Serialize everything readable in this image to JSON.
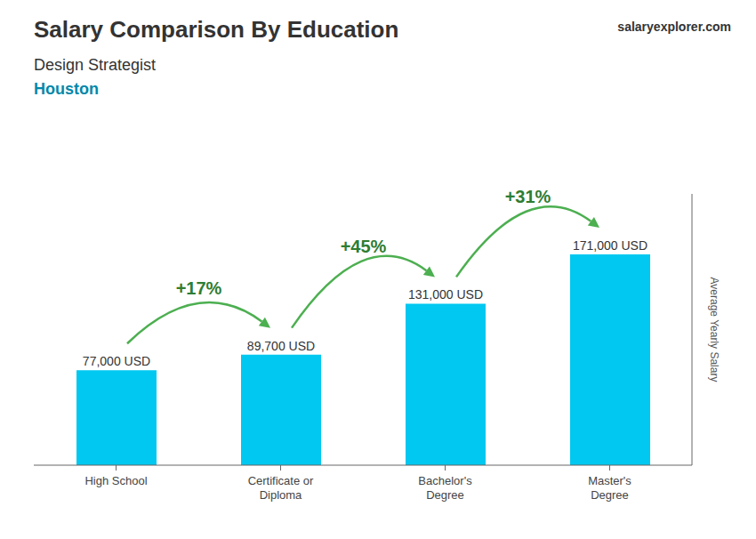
{
  "chart_data": {
    "type": "bar",
    "title": "Salary Comparison By Education",
    "subtitle": [
      "Design Strategist",
      "Houston"
    ],
    "ylabel": "Average Yearly Salary",
    "categories": [
      "High School",
      "Certificate or\nDiploma",
      "Bachelor's\nDegree",
      "Master's\nDegree"
    ],
    "values": [
      77000,
      89700,
      131000,
      171000
    ],
    "value_labels": [
      "77,000 USD",
      "89,700 USD",
      "131,000 USD",
      "171,000 USD"
    ],
    "color": "#00c8f0",
    "ylim": [
      0,
      220000
    ],
    "tick_labels": false,
    "grid": false,
    "annotations": [
      {
        "text": "salaryexplorer.com"
      },
      {
        "text": "+17%",
        "from": "High School",
        "to": "Certificate or\nDiploma"
      },
      {
        "text": "+45%",
        "from": "Certificate or\nDiploma",
        "to": "Bachelor's\nDegree"
      },
      {
        "text": "+31%",
        "from": "Bachelor's\nDegree",
        "to": "Master's\nDegree"
      }
    ]
  }
}
